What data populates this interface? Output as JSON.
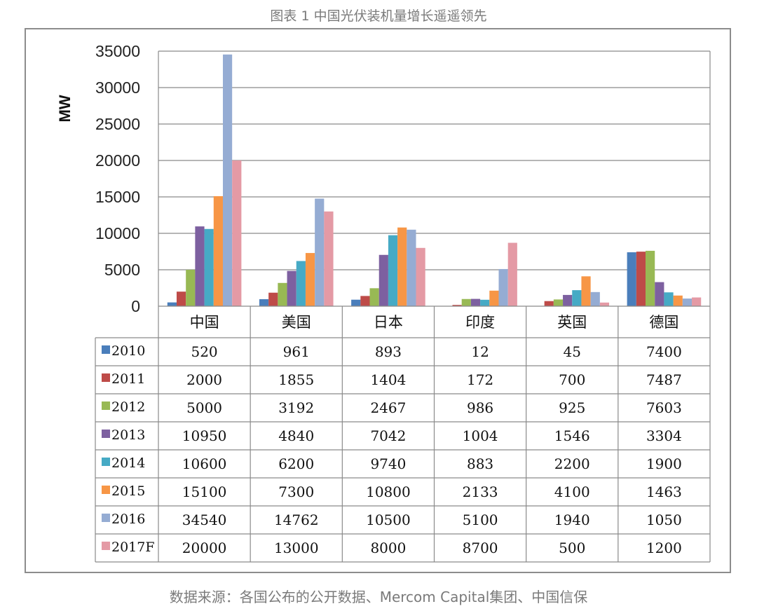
{
  "caption": {
    "title": "图表 1 中国光伏装机量增长遥遥领先",
    "source": "数据来源：各国公布的公开数据、Mercom Capital集团、中国信保"
  },
  "chart_data": {
    "type": "bar",
    "title": "图表 1 中国光伏装机量增长遥遥领先",
    "xlabel": "",
    "ylabel": "MW",
    "ylim": [
      0,
      35000
    ],
    "yticks": [
      "0",
      "5000",
      "10000",
      "15000",
      "20000",
      "25000",
      "30000",
      "35000"
    ],
    "grid": true,
    "legend": "data-table",
    "categories": [
      "中国",
      "美国",
      "日本",
      "印度",
      "英国",
      "德国"
    ],
    "series": [
      {
        "name": "2010",
        "color": "#4a7ebb",
        "values": [
          520,
          961,
          893,
          12,
          45,
          7400
        ]
      },
      {
        "name": "2011",
        "color": "#be4b48",
        "values": [
          2000,
          1855,
          1404,
          172,
          700,
          7487
        ]
      },
      {
        "name": "2012",
        "color": "#98b954",
        "values": [
          5000,
          3192,
          2467,
          986,
          925,
          7603
        ]
      },
      {
        "name": "2013",
        "color": "#7d60a0",
        "values": [
          10950,
          4840,
          7042,
          1004,
          1546,
          3304
        ]
      },
      {
        "name": "2014",
        "color": "#46aac5",
        "values": [
          10600,
          6200,
          9740,
          883,
          2200,
          1900
        ]
      },
      {
        "name": "2015",
        "color": "#f79646",
        "values": [
          15100,
          7300,
          10800,
          2133,
          4100,
          1463
        ]
      },
      {
        "name": "2016",
        "color": "#95acd3",
        "values": [
          34540,
          14762,
          10500,
          5100,
          1940,
          1050
        ]
      },
      {
        "name": "2017F",
        "color": "#e49aa5",
        "values": [
          20000,
          13000,
          8000,
          8700,
          500,
          1200
        ]
      }
    ]
  }
}
